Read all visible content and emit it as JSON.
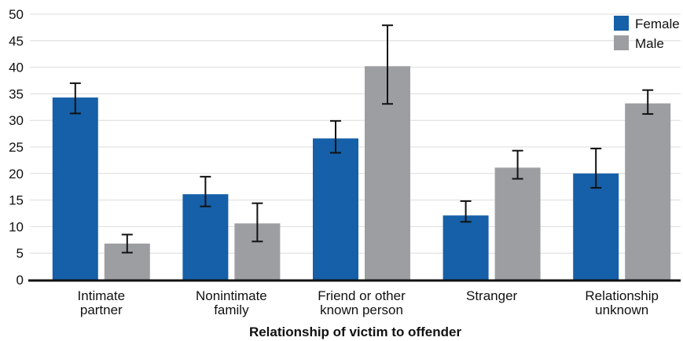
{
  "chart_data": {
    "type": "bar",
    "title": "",
    "xlabel": "Relationship of victim to offender",
    "ylabel": "",
    "ylim": [
      0,
      50
    ],
    "yticks": [
      0,
      5,
      10,
      15,
      20,
      25,
      30,
      35,
      40,
      45,
      50
    ],
    "grid": true,
    "legend_position": "top-right",
    "categories": [
      [
        "Intimate",
        "partner"
      ],
      [
        "Nonintimate",
        "family"
      ],
      [
        "Friend or other",
        "known person"
      ],
      [
        "Stranger"
      ],
      [
        "Relationship",
        "unknown"
      ]
    ],
    "series": [
      {
        "name": "Female",
        "color": "#1560a8",
        "values": [
          34.3,
          16.1,
          26.6,
          12.1,
          20.0
        ],
        "error_low": [
          31.3,
          13.8,
          23.9,
          10.9,
          17.3
        ],
        "error_high": [
          37.0,
          19.4,
          29.9,
          14.8,
          24.7
        ]
      },
      {
        "name": "Male",
        "color": "#9d9ea2",
        "values": [
          6.8,
          10.6,
          40.2,
          21.1,
          33.2
        ],
        "error_low": [
          5.1,
          7.2,
          33.1,
          19.0,
          31.2
        ],
        "error_high": [
          8.5,
          14.4,
          47.9,
          24.3,
          35.7
        ]
      }
    ]
  }
}
